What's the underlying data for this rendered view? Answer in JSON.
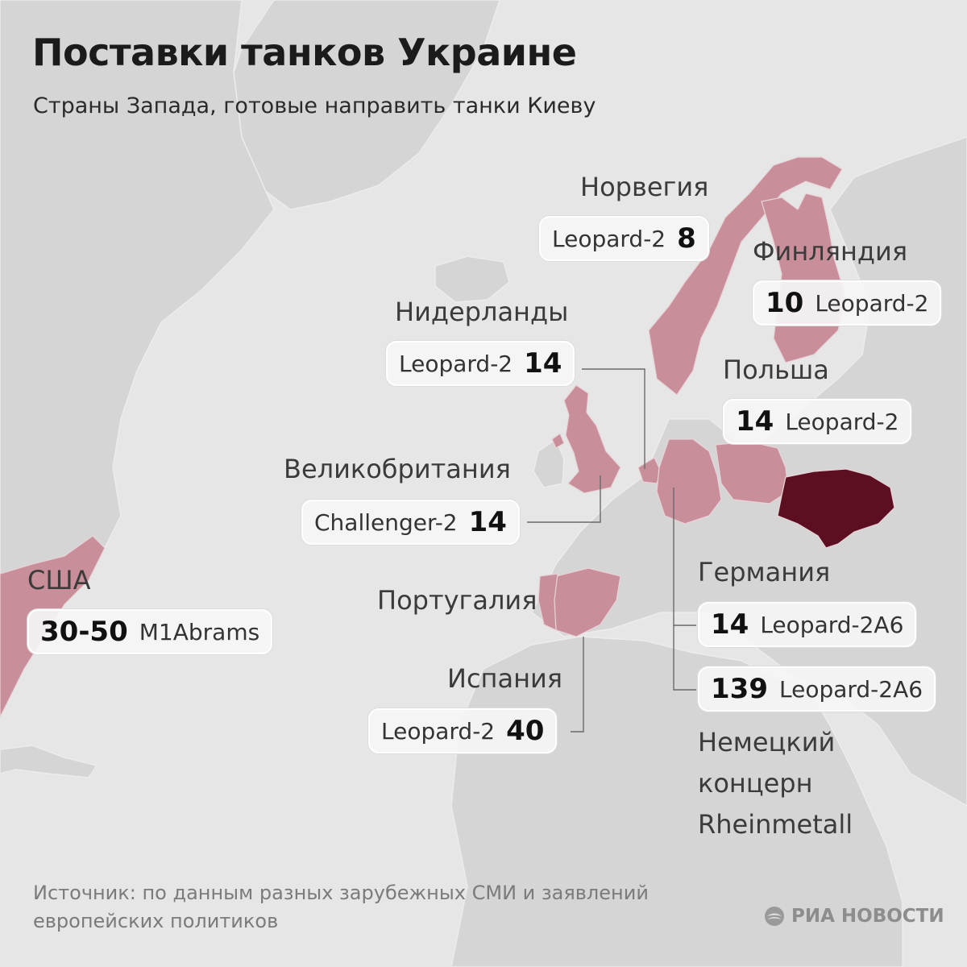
{
  "title": "Поставки танков Украине",
  "subtitle": "Страны Запада, готовые направить танки Киеву",
  "colors": {
    "background": "#e6e6e6",
    "land": "#d5d5d5",
    "highlight": "#c88f9b",
    "ukraine": "#5c0f20",
    "text": "#1a1a1a"
  },
  "countries": {
    "norway": {
      "name": "Норвегия",
      "model": "Leopard-2",
      "count": "8"
    },
    "finland": {
      "name": "Финляндия",
      "model": "Leopard-2",
      "count": "10"
    },
    "netherlands": {
      "name": "Нидерланды",
      "model": "Leopard-2",
      "count": "14"
    },
    "poland": {
      "name": "Польша",
      "model": "Leopard-2",
      "count": "14"
    },
    "uk": {
      "name": "Великобритания",
      "model": "Challenger-2",
      "count": "14"
    },
    "usa": {
      "name": "США",
      "model": "M1Abrams",
      "count": "30-50"
    },
    "portugal": {
      "name": "Португалия"
    },
    "germany": {
      "name": "Германия",
      "model": "Leopard-2A6",
      "count": "14"
    },
    "spain": {
      "name": "Испания",
      "model": "Leopard-2",
      "count": "40"
    },
    "rheinmetall": {
      "name": "Немецкий концерн Rheinmetall",
      "model": "Leopard-2A6",
      "count": "139"
    }
  },
  "source": "Источник: по данным разных зарубежных СМИ и заявлений европейских политиков",
  "logo": {
    "text": "РИА НОВОСТИ",
    "icon": "ria-novosti-logo-icon"
  }
}
